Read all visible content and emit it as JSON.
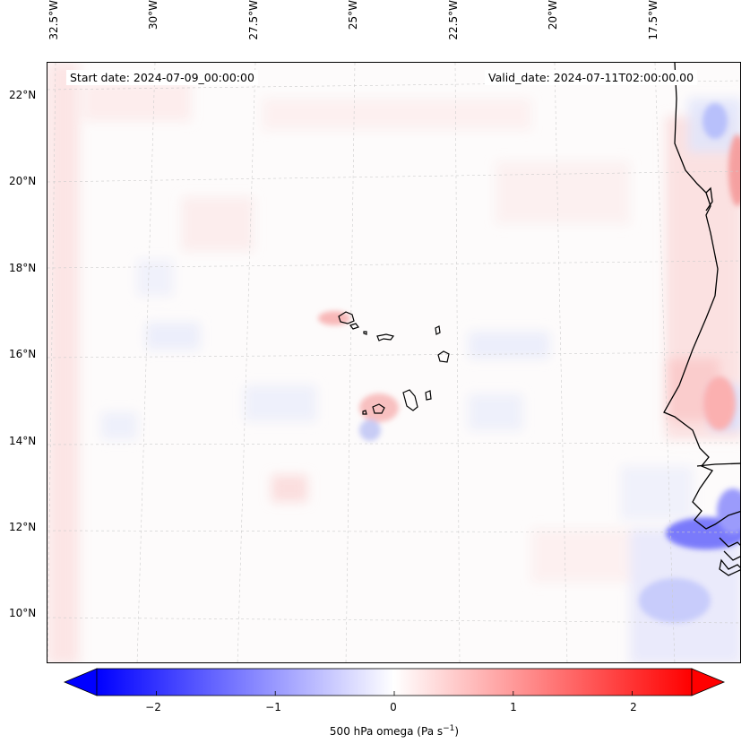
{
  "header": {
    "start_date": "Start date: 2024-07-09_00:00:00",
    "valid_date": "Valid_date: 2024-07-11T02:00:00.00"
  },
  "map": {
    "lon_labels": [
      "32.5°W",
      "30°W",
      "27.5°W",
      "25°W",
      "22.5°W",
      "20°W",
      "17.5°W"
    ],
    "lat_labels": [
      "22°N",
      "20°N",
      "18°N",
      "16°N",
      "14°N",
      "12°N",
      "10°N"
    ],
    "extent": {
      "lon": [
        -32.7,
        -15.8
      ],
      "lat": [
        8.9,
        22.8
      ]
    },
    "gridlines": true,
    "field": "500 hPa omega",
    "colors": {
      "coastline": "#000000",
      "positive": "#ff0000",
      "negative": "#0000ff",
      "zero": "#ffffff"
    }
  },
  "colorbar": {
    "ticks": [
      "−2",
      "−1",
      "0",
      "1",
      "2"
    ],
    "tick_values": [
      -2,
      -1,
      0,
      1,
      2
    ],
    "range": [
      -2.5,
      2.5
    ],
    "label_main": "500 hPa omega (Pa s",
    "label_exp": "−1",
    "label_close": ")",
    "extend": "both",
    "colors": [
      "#0000ff",
      "#ffffff",
      "#ff0000"
    ]
  }
}
